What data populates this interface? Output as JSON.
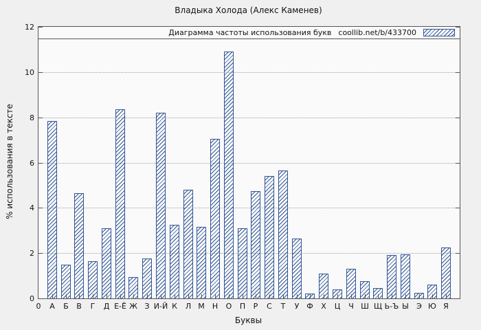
{
  "figure": {
    "background": "#f0f0f0",
    "plot_background": "#fafafa"
  },
  "chart_data": {
    "type": "bar",
    "title": "Владыка Холода (Алекс Каменев)",
    "legend": {
      "label": "Диаграмма частоты использования букв",
      "source": "coollib.net/b/433700",
      "swatch": "hatched-bar-sample"
    },
    "xlabel": "Буквы",
    "ylabel": "% использования в тексте",
    "origin_tick_label": "0",
    "categories": [
      "А",
      "Б",
      "В",
      "Г",
      "Д",
      "Е-Ё",
      "Ж",
      "З",
      "И-Й",
      "К",
      "Л",
      "М",
      "Н",
      "О",
      "П",
      "Р",
      "С",
      "Т",
      "У",
      "Ф",
      "Х",
      "Ц",
      "Ч",
      "Ш",
      "Щ",
      "Ь-Ъ",
      "Ы",
      "Э",
      "Ю",
      "Я"
    ],
    "values": [
      7.85,
      1.5,
      4.65,
      1.65,
      3.1,
      8.35,
      0.95,
      1.75,
      8.2,
      3.25,
      4.8,
      3.15,
      7.05,
      10.9,
      3.1,
      4.75,
      5.4,
      5.65,
      2.65,
      0.2,
      1.1,
      0.4,
      1.3,
      0.75,
      0.45,
      1.9,
      1.95,
      0.25,
      0.6,
      2.25
    ],
    "yticks": [
      0,
      2,
      4,
      6,
      8,
      10,
      12
    ],
    "ylim": [
      0,
      12
    ],
    "bar_color": "#2f5596",
    "grid": "horizontal-dotted",
    "hatch": "diagonal"
  }
}
